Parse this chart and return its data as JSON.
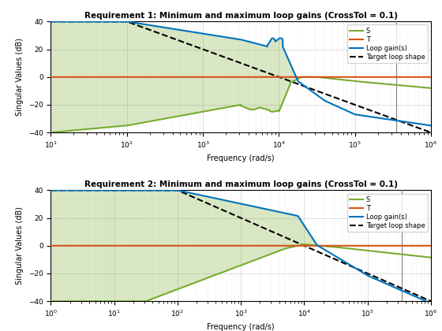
{
  "title1": "Requirement 1: Minimum and maximum loop gains (CrossTol = 0.1)",
  "title2": "Requirement 2: Minimum and maximum loop gains (CrossTol = 0.1)",
  "xlabel": "Frequency (rad/s)",
  "ylabel": "Singular Values (dB)",
  "ylim": [
    -40,
    40
  ],
  "xlim1": [
    10,
    1000000
  ],
  "xlim2": [
    1,
    1000000
  ],
  "legend_labels": [
    "S",
    "T",
    "Loop gain(s)",
    "Target loop shape"
  ],
  "colors": {
    "S": "#77ac30",
    "T": "#d95319",
    "loop": "#0072bd",
    "target": "#000000",
    "fill_green": "#77ac30",
    "fill_red": "#d95319"
  },
  "vline_x": 350000
}
